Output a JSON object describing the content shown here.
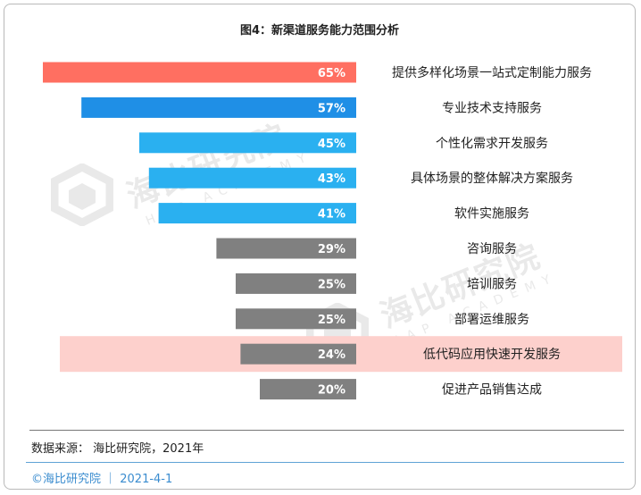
{
  "chart_data": {
    "type": "bar",
    "orientation": "horizontal",
    "title": "图4：新渠道服务能力范围分析",
    "categories": [
      "提供多样化场景一站式定制能力服务",
      "专业技术支持服务",
      "个性化需求开发服务",
      "具体场景的整体解决方案服务",
      "软件实施服务",
      "咨询服务",
      "培训服务",
      "部署运维服务",
      "低代码应用快速开发服务",
      "促进产品销售达成"
    ],
    "values": [
      65,
      57,
      45,
      43,
      41,
      29,
      25,
      25,
      24,
      20
    ],
    "value_labels": [
      "65%",
      "57%",
      "45%",
      "43%",
      "41%",
      "29%",
      "25%",
      "25%",
      "24%",
      "20%"
    ],
    "bar_colors": [
      "#ff6f61",
      "#1f8fe6",
      "#2ab0f0",
      "#2ab0f0",
      "#2ab0f0",
      "#808080",
      "#808080",
      "#808080",
      "#808080",
      "#808080"
    ],
    "highlighted_category": "低代码应用快速开发服务",
    "highlight_color": "#fdd0cc",
    "xlim": [
      0,
      70
    ]
  },
  "source": "数据来源： 海比研究院，2021年",
  "footer": "©海比研究院 ｜ 2021-4-1",
  "watermark": {
    "text": "海比研究院",
    "sub": "HAP ACADEMY",
    "icon": "hap-cube-logo-icon"
  }
}
